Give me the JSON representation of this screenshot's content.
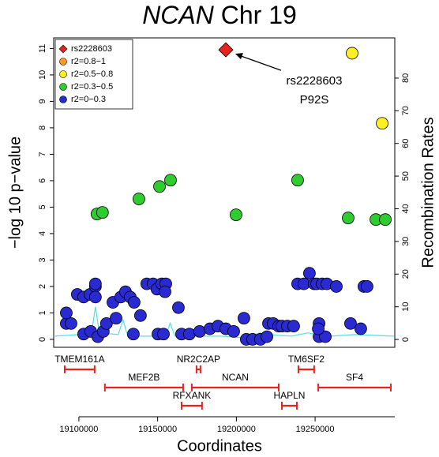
{
  "chart_data": {
    "type": "scatter",
    "title_gene": "NCAN",
    "title": "Chr 19",
    "x_label": "Coordinates",
    "y_label": "−log 10 p−value",
    "y2_label": "Recombination Rates",
    "xlim": [
      19084000,
      19300600
    ],
    "ylim": [
      -0.3,
      11.4
    ],
    "y2lim": [
      -2.4,
      92.3
    ],
    "xticks": [
      19100000,
      19150000,
      19200000,
      19250000
    ],
    "yticks": [
      0,
      1,
      2,
      3,
      4,
      5,
      6,
      7,
      8,
      9,
      10,
      11
    ],
    "y2ticks": [
      0,
      10,
      20,
      30,
      40,
      50,
      60,
      70,
      80
    ],
    "legend": "top-left",
    "series": [
      {
        "name": "rs2228603",
        "color": "#e8231e",
        "marker": "diamond",
        "x": [
          19193300
        ],
        "values": [
          10.95
        ]
      },
      {
        "name": "r2=0.8−1",
        "color": "#ff9a1e",
        "marker": "circle",
        "x": [],
        "values": []
      },
      {
        "name": "r2=0.5−0.8",
        "color": "#ffee22",
        "marker": "circle",
        "x": [
          19273500,
          19292600
        ],
        "values": [
          10.82,
          8.17
        ]
      },
      {
        "name": "r2=0.3−0.5",
        "color": "#2fcc2f",
        "marker": "circle",
        "x": [
          19111500,
          19115000,
          19138100,
          19151200,
          19158200,
          19199800,
          19238900,
          19271000,
          19288600,
          19294600
        ],
        "values": [
          4.74,
          4.8,
          5.31,
          5.78,
          6.02,
          4.71,
          6.02,
          4.59,
          4.53,
          4.53
        ]
      },
      {
        "name": "r2=0−0.3",
        "color": "#2a2ad2",
        "marker": "circle",
        "x": [
          19092000,
          19095000,
          19092000,
          19099000,
          19103000,
          19107000,
          19110500,
          19110500,
          19110500,
          19103000,
          19107500,
          19112000,
          19115500,
          19117500,
          19121600,
          19123600,
          19126600,
          19129600,
          19132600,
          19135100,
          19134600,
          19139100,
          19143100,
          19147100,
          19149600,
          19152600,
          19155200,
          19154700,
          19150200,
          19153700,
          19163200,
          19165200,
          19170200,
          19176700,
          19183200,
          19188300,
          19193300,
          19198300,
          19204800,
          19206300,
          19210300,
          19215300,
          19219400,
          19220400,
          19223400,
          19226900,
          19228900,
          19232400,
          19236400,
          19238900,
          19242900,
          19246400,
          19249400,
          19251000,
          19254500,
          19257500,
          19263500,
          19252500,
          19252500,
          19256500,
          19252000,
          19272500,
          19281000,
          19283000,
          19279000
        ],
        "values": [
          0.6,
          0.6,
          1.0,
          1.7,
          1.6,
          1.7,
          2.0,
          2.1,
          1.6,
          0.2,
          0.3,
          0.1,
          0.3,
          0.6,
          1.4,
          0.8,
          1.6,
          1.8,
          1.6,
          1.4,
          0.2,
          0.9,
          2.1,
          2.1,
          1.9,
          2.1,
          2.1,
          1.8,
          0.2,
          0.2,
          1.2,
          0.2,
          0.2,
          0.3,
          0.4,
          0.5,
          0.4,
          0.3,
          0.8,
          0.0,
          0.0,
          0.0,
          0.1,
          0.6,
          0.6,
          0.5,
          0.5,
          0.5,
          0.5,
          2.1,
          2.1,
          2.5,
          2.1,
          2.1,
          2.1,
          2.1,
          2.0,
          0.6,
          0.1,
          0.1,
          0.4,
          0.6,
          2.0,
          2.0,
          0.4
        ]
      }
    ],
    "recombination": {
      "color": "#55dde8",
      "axis": "y2",
      "x": [
        19084000,
        19100000,
        19108000,
        19110500,
        19113000,
        19125000,
        19128000,
        19131000,
        19155000,
        19158000,
        19161000,
        19190000,
        19205000,
        19215000,
        19220000,
        19235000,
        19245000,
        19260000,
        19275000,
        19300000
      ],
      "values": [
        1,
        1.5,
        2,
        10,
        2,
        1.5,
        6,
        1,
        1,
        5,
        1,
        1,
        0.5,
        2,
        1.5,
        1,
        2,
        1,
        1.5,
        1
      ]
    },
    "annotation": {
      "lines": [
        "rs2228603",
        "P92S"
      ]
    },
    "genes": [
      {
        "name": "TMEM161A",
        "start": 19091000,
        "end": 19110000
      },
      {
        "name": "MEF2B",
        "start": 19116500,
        "end": 19166200
      },
      {
        "name": "NR2C2AP",
        "start": 19174700,
        "end": 19177200
      },
      {
        "name": "NCAN",
        "start": 19171700,
        "end": 19226900
      },
      {
        "name": "RFXANK",
        "start": 19165200,
        "end": 19178200
      },
      {
        "name": "TM6SF2",
        "start": 19239400,
        "end": 19249400
      },
      {
        "name": "HAPLN",
        "start": 19228900,
        "end": 19238400
      },
      {
        "name": "SF4",
        "start": 19252000,
        "end": 19298100
      }
    ],
    "gene_color": "#e8231e"
  }
}
